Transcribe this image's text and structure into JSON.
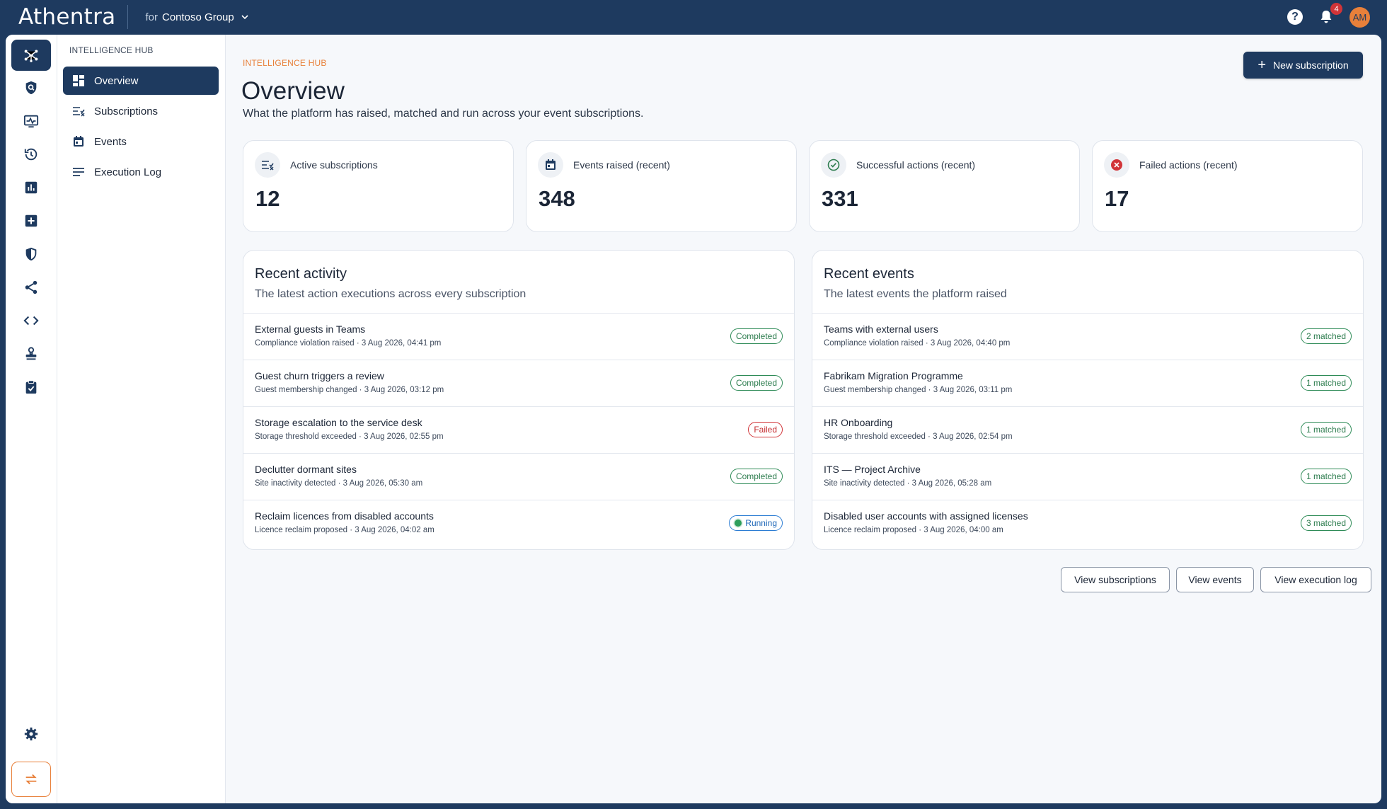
{
  "topbar": {
    "brand": "Athentra",
    "org_prefix": "for",
    "org_name": "Contoso Group",
    "notification_count": "4",
    "avatar_initials": "AM"
  },
  "rail": {
    "icons": [
      "hub-icon",
      "shield-search-icon",
      "monitor-icon",
      "history-icon",
      "bar-chart-icon",
      "add-box-icon",
      "shield-icon",
      "share-icon",
      "code-icon",
      "stamp-icon",
      "clipboard-check-icon",
      "gear-icon",
      "swap-icon"
    ]
  },
  "subnav": {
    "section_title": "INTELLIGENCE HUB",
    "items": [
      {
        "label": "Overview",
        "icon": "dashboard-icon"
      },
      {
        "label": "Subscriptions",
        "icon": "subscriptions-icon"
      },
      {
        "label": "Events",
        "icon": "calendar-icon"
      },
      {
        "label": "Execution Log",
        "icon": "log-icon"
      }
    ]
  },
  "header": {
    "eyebrow": "INTELLIGENCE HUB",
    "title": "Overview",
    "subtitle": "What the platform has raised, matched and run across your event subscriptions.",
    "new_button": "New subscription"
  },
  "stats": [
    {
      "label": "Active subscriptions",
      "value": "12",
      "icon": "subscriptions-icon"
    },
    {
      "label": "Events raised (recent)",
      "value": "348",
      "icon": "calendar-icon"
    },
    {
      "label": "Successful actions (recent)",
      "value": "331",
      "icon": "check-circle-icon"
    },
    {
      "label": "Failed actions (recent)",
      "value": "17",
      "icon": "error-circle-icon"
    }
  ],
  "recent_activity": {
    "title": "Recent activity",
    "subtitle": "The latest action executions across every subscription",
    "rows": [
      {
        "title": "External guests in Teams",
        "meta": "Compliance violation raised · 3 Aug 2026, 04:41 pm",
        "status": "Completed"
      },
      {
        "title": "Guest churn triggers a review",
        "meta": "Guest membership changed · 3 Aug 2026, 03:12 pm",
        "status": "Completed"
      },
      {
        "title": "Storage escalation to the service desk",
        "meta": "Storage threshold exceeded · 3 Aug 2026, 02:55 pm",
        "status": "Failed"
      },
      {
        "title": "Declutter dormant sites",
        "meta": "Site inactivity detected · 3 Aug 2026, 05:30 am",
        "status": "Completed"
      },
      {
        "title": "Reclaim licences from disabled accounts",
        "meta": "Licence reclaim proposed · 3 Aug 2026, 04:02 am",
        "status": "Running"
      }
    ]
  },
  "recent_events": {
    "title": "Recent events",
    "subtitle": "The latest events the platform raised",
    "rows": [
      {
        "title": "Teams with external users",
        "meta": "Compliance violation raised · 3 Aug 2026, 04:40 pm",
        "status": "2 matched"
      },
      {
        "title": "Fabrikam Migration Programme",
        "meta": "Guest membership changed · 3 Aug 2026, 03:11 pm",
        "status": "1 matched"
      },
      {
        "title": "HR Onboarding",
        "meta": "Storage threshold exceeded · 3 Aug 2026, 02:54 pm",
        "status": "1 matched"
      },
      {
        "title": "ITS — Project Archive",
        "meta": "Site inactivity detected · 3 Aug 2026, 05:28 am",
        "status": "1 matched"
      },
      {
        "title": "Disabled user accounts with assigned licenses",
        "meta": "Licence reclaim proposed · 3 Aug 2026, 04:00 am",
        "status": "3 matched"
      }
    ]
  },
  "footer_actions": {
    "view_subscriptions": "View subscriptions",
    "view_events": "View events",
    "view_execution_log": "View execution log"
  },
  "colors": {
    "navy": "#1e3a5f",
    "accent_orange": "#e8803a",
    "success": "#2e7d4f",
    "danger": "#d13438",
    "info": "#2b7cd3"
  }
}
